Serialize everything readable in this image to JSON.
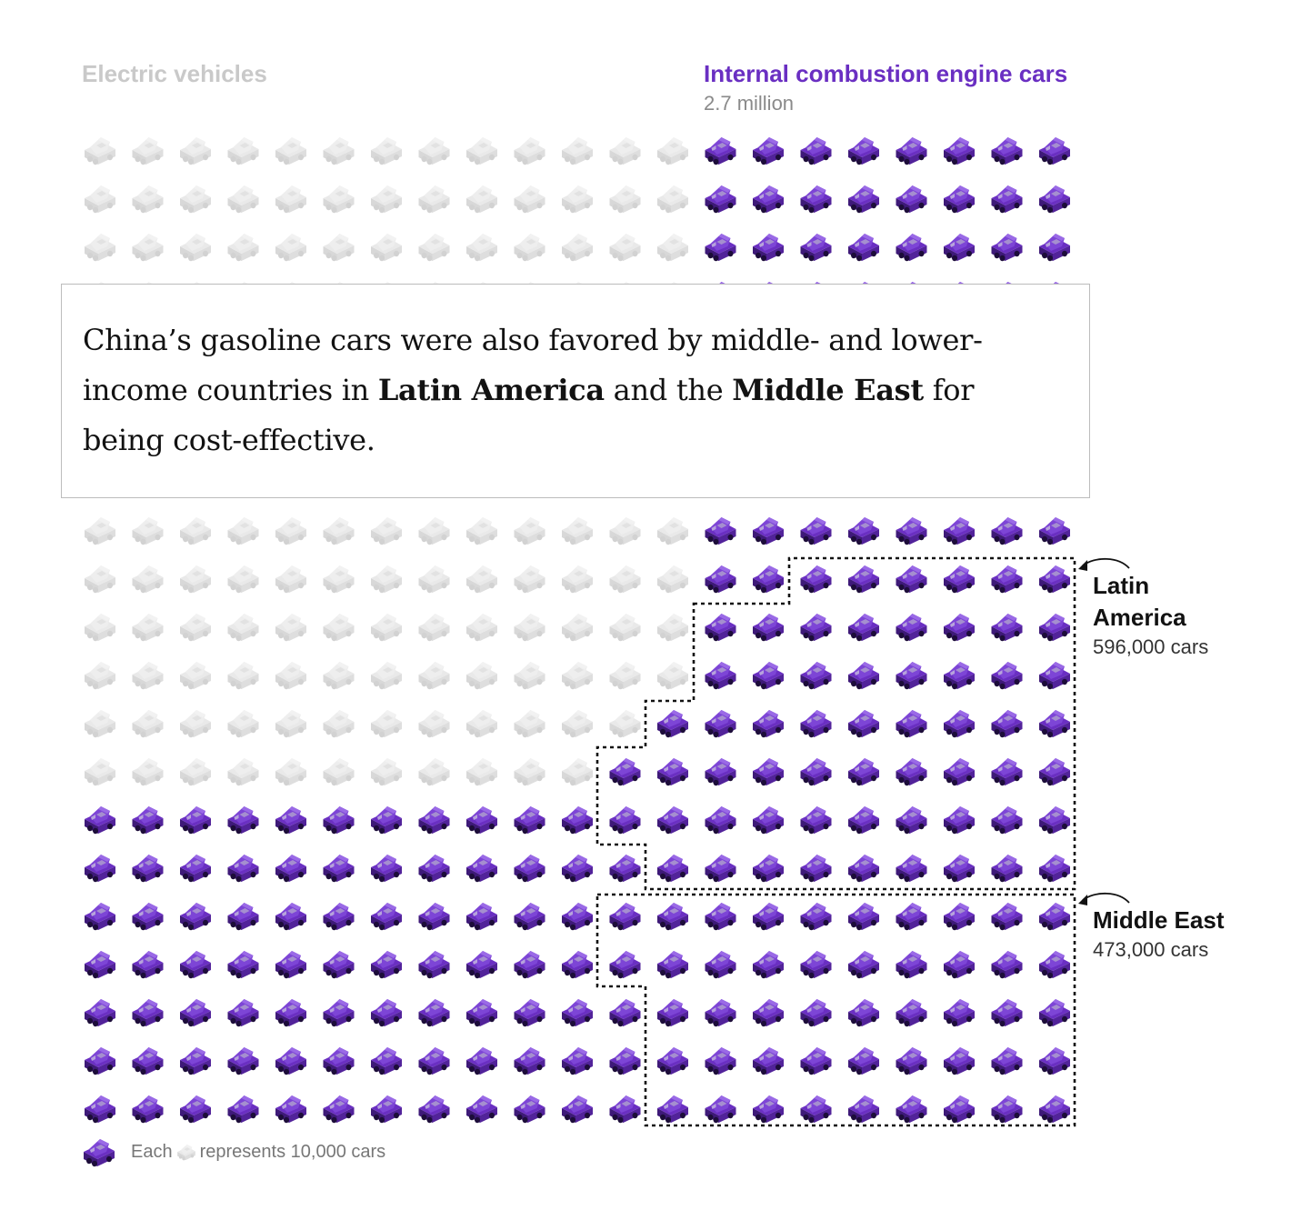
{
  "chart_data": {
    "type": "unit-chart",
    "unit_value": 10000,
    "grid_rows": 21,
    "grid_columns": 21,
    "series": [
      {
        "name": "Electric vehicles",
        "color": "#e6e6e6",
        "label": "Electric vehicles"
      },
      {
        "name": "Internal combustion engine cars",
        "color": "#6a2fc2",
        "label": "Internal combustion engine cars",
        "value_label": "2.7 million",
        "value": 2700000
      }
    ],
    "highlights": [
      {
        "name": "Latin America",
        "value": 596000,
        "value_label": "596,000 cars"
      },
      {
        "name": "Middle East",
        "value": 473000,
        "value_label": "473,000 cars"
      }
    ]
  },
  "header": {
    "ev_label": "Electric vehicles",
    "ice_label": "Internal combustion engine cars",
    "ice_value": "2.7 million"
  },
  "annotation": {
    "part1": "China’s gasoline cars were also favored by middle- and lower-income countries in ",
    "bold1": "Latin America",
    "part2": " and the ",
    "bold2": "Middle East",
    "part3": " for being cost-effective."
  },
  "callouts": {
    "latin_name": "Latin America",
    "latin_value": "596,000 cars",
    "me_name": "Middle East",
    "me_value": "473,000 cars"
  },
  "legend": {
    "lead": "Each",
    "tail": "represents 10,000 cars"
  },
  "colors": {
    "ice": "#6a2fc2",
    "ev": "#e6e6e6",
    "annotation_border": "#bcbcbc"
  },
  "icons": {
    "car": "isometric-car-icon"
  }
}
